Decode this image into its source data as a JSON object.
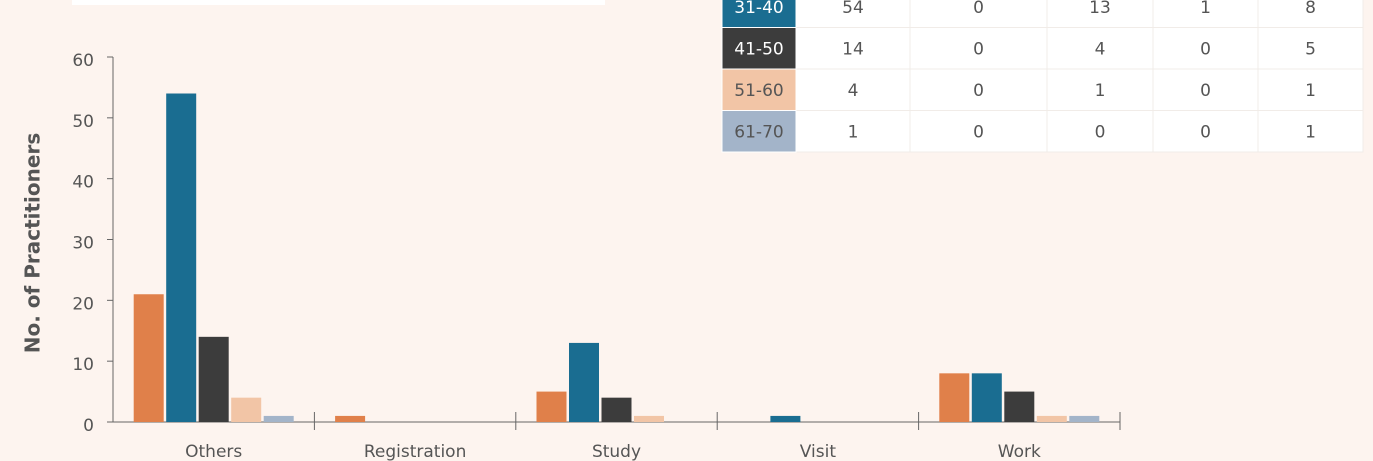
{
  "chart_data": {
    "type": "bar",
    "y_label": "No. of Practitioners",
    "categories": [
      "Others",
      "Registration",
      "Study",
      "Visit",
      "Work"
    ],
    "series": [
      {
        "color": "#e0804a",
        "values": [
          21,
          1,
          5,
          0,
          8
        ]
      },
      {
        "name": "31-40",
        "color": "#1a6d91",
        "values": [
          54,
          0,
          13,
          1,
          8
        ]
      },
      {
        "name": "41-50",
        "color": "#3c3c3c",
        "values": [
          14,
          0,
          4,
          0,
          5
        ]
      },
      {
        "name": "51-60",
        "color": "#f2c5a6",
        "values": [
          4,
          0,
          1,
          0,
          1
        ]
      },
      {
        "name": "61-70",
        "color": "#a3b4c9",
        "values": [
          1,
          0,
          0,
          0,
          1
        ]
      }
    ],
    "ylim": [
      0,
      60
    ],
    "yticks": [
      0,
      10,
      20,
      30,
      40,
      50,
      60
    ]
  }
}
